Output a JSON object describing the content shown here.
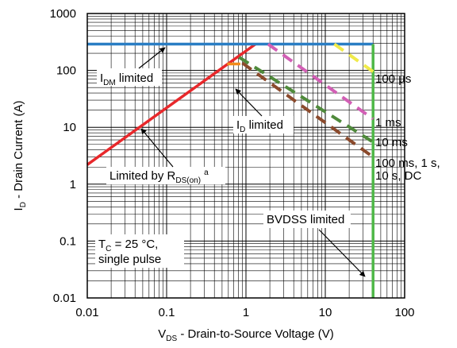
{
  "chart_data": {
    "type": "line",
    "title": "",
    "xlabel": "V",
    "xlabel_sub": "DS",
    "xlabel_rest": " - Drain-to-Source Voltage (V)",
    "ylabel": "I",
    "ylabel_sub": "D",
    "ylabel_rest": " - Drain Current (A)",
    "xscale": "log",
    "yscale": "log",
    "xlim": [
      0.01,
      100
    ],
    "ylim": [
      0.01,
      1000
    ],
    "grid": true,
    "x_ticks": [
      "0.01",
      "0.1",
      "1",
      "10",
      "100"
    ],
    "y_ticks": [
      "0.01",
      "0.1",
      "1",
      "10",
      "100",
      "1000"
    ],
    "colors": {
      "idm": "#2a7ec4",
      "rds": "#e8282b",
      "id": "#f28c1c",
      "us100": "#f0ea4a",
      "ms1": "#d25fb5",
      "ms10": "#4f8a3b",
      "dc": "#8b4a2c",
      "bvdss": "#4fb848"
    },
    "series": [
      {
        "key": "rds",
        "style": "solid",
        "points": [
          [
            0.01,
            2.2
          ],
          [
            1.32,
            290
          ]
        ]
      },
      {
        "key": "idm",
        "style": "solid",
        "points": [
          [
            0.01,
            290
          ],
          [
            40,
            290
          ]
        ]
      },
      {
        "key": "id",
        "style": "solid",
        "points": [
          [
            0.58,
            130
          ],
          [
            0.85,
            130
          ]
        ]
      },
      {
        "key": "bvdss",
        "style": "solid",
        "points": [
          [
            40,
            290
          ],
          [
            40,
            0.01
          ]
        ]
      },
      {
        "key": "us100",
        "style": "dashed",
        "points": [
          [
            13,
            290
          ],
          [
            40,
            95
          ]
        ]
      },
      {
        "key": "ms1",
        "style": "dashed",
        "points": [
          [
            1.9,
            290
          ],
          [
            40,
            14
          ]
        ]
      },
      {
        "key": "ms10",
        "style": "dashed",
        "points": [
          [
            0.82,
            170
          ],
          [
            40,
            5.5
          ]
        ]
      },
      {
        "key": "dc",
        "style": "dashed",
        "points": [
          [
            0.9,
            135
          ],
          [
            40,
            3
          ]
        ]
      }
    ],
    "annotations": {
      "idm_main": "I",
      "idm_sub": "DM",
      "idm_rest": " limited",
      "id_main": "I",
      "id_sub": "D",
      "id_rest": " limited",
      "rds_main": "Limited by R",
      "rds_sub": "DS(on)",
      "rds_sup": "a",
      "bvdss": "BVDSS limited",
      "tc_main": "T",
      "tc_sub": "C",
      "tc_rest": " = 25 °C,",
      "tc_line2": "single pulse",
      "lbl_100us": "100 µs",
      "lbl_1ms": "1 ms",
      "lbl_10ms": "10 ms",
      "lbl_dc_line1": "100 ms, 1 s,",
      "lbl_dc_line2": "10 s, DC"
    }
  }
}
